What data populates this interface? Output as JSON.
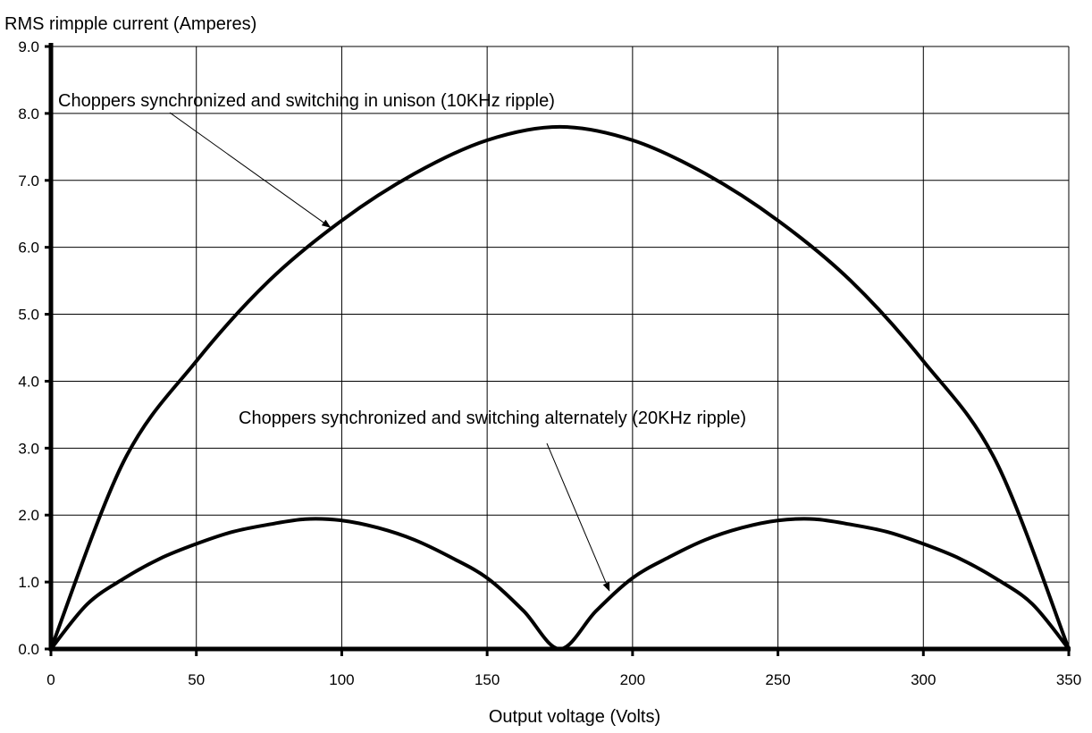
{
  "chart_data": {
    "type": "line",
    "title": "",
    "xlabel": "Output voltage (Volts)",
    "ylabel": "RMS rimpple current (Amperes)",
    "xlim": [
      0,
      350
    ],
    "ylim": [
      0,
      9
    ],
    "x_ticks": [
      0,
      50,
      100,
      150,
      200,
      250,
      300,
      350
    ],
    "y_ticks": [
      0.0,
      1.0,
      2.0,
      3.0,
      4.0,
      5.0,
      6.0,
      7.0,
      8.0,
      9.0
    ],
    "x_tick_labels": [
      "0",
      "50",
      "100",
      "150",
      "200",
      "250",
      "300",
      "350"
    ],
    "y_tick_labels": [
      "0.0",
      "1.0",
      "2.0",
      "3.0",
      "4.0",
      "5.0",
      "6.0",
      "7.0",
      "8.0",
      "9.0"
    ],
    "grid": true,
    "legend": "none",
    "series": [
      {
        "x": [
          0,
          25,
          50,
          75,
          100,
          125,
          150,
          175,
          200,
          225,
          250,
          275,
          300,
          325,
          350
        ],
        "y": [
          0.0,
          2.8,
          4.3,
          5.5,
          6.4,
          7.1,
          7.6,
          7.8,
          7.6,
          7.1,
          6.4,
          5.5,
          4.3,
          2.8,
          0.0
        ]
      },
      {
        "x": [
          0,
          12.5,
          25,
          37.5,
          50,
          62.5,
          75,
          87.5,
          100,
          112.5,
          125,
          137.5,
          150,
          162.5,
          175,
          187.5,
          200,
          212.5,
          225,
          237.5,
          250,
          262.5,
          275,
          287.5,
          300,
          312.5,
          325,
          337.5,
          350
        ],
        "y": [
          0.0,
          0.67,
          1.05,
          1.35,
          1.57,
          1.75,
          1.86,
          1.94,
          1.92,
          1.81,
          1.63,
          1.37,
          1.06,
          0.57,
          0.0,
          0.57,
          1.06,
          1.37,
          1.63,
          1.81,
          1.92,
          1.94,
          1.86,
          1.75,
          1.57,
          1.35,
          1.05,
          0.67,
          0.0
        ]
      }
    ],
    "annotations": [
      {
        "text": "Choppers synchronized and switching in unison (10KHz ripple)",
        "arrow_to": [
          96,
          6.3
        ]
      },
      {
        "text": "Choppers synchronized and switching alternately (20KHz ripple)",
        "arrow_to": [
          192,
          0.87
        ]
      }
    ]
  }
}
